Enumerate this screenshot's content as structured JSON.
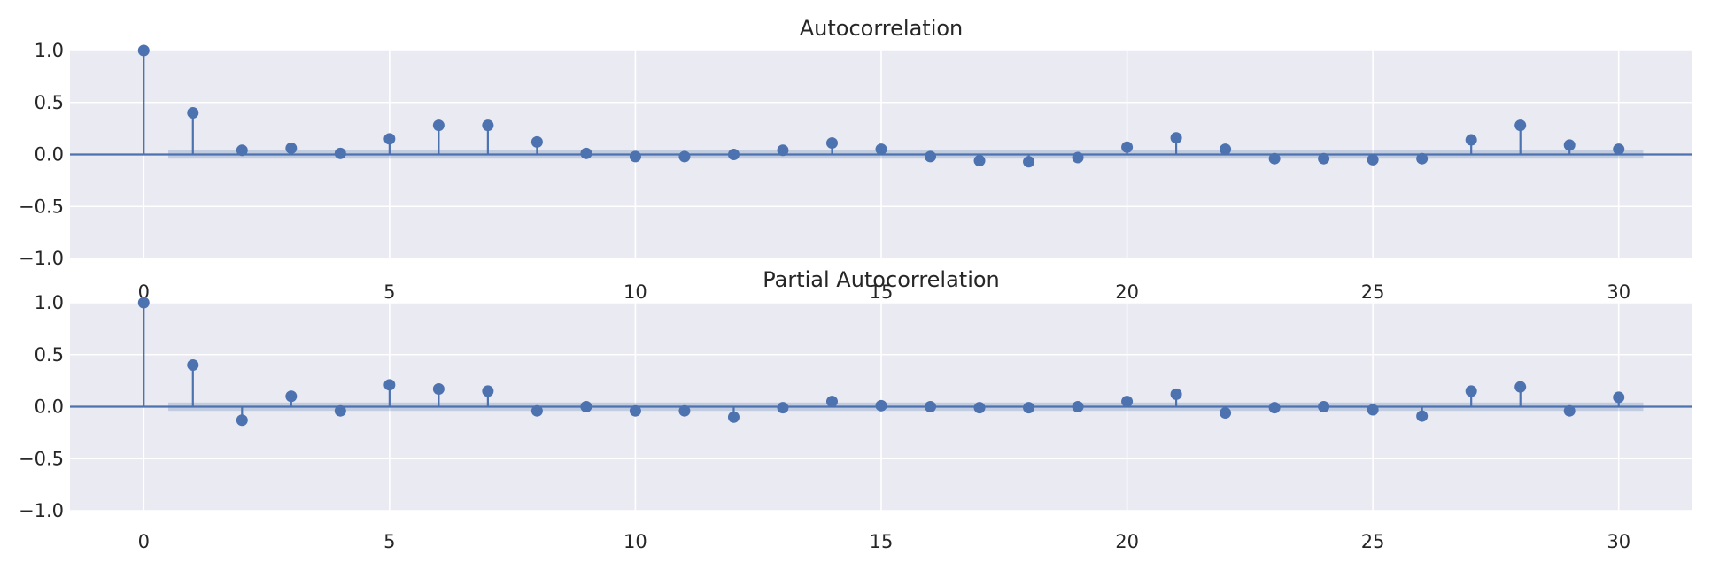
{
  "chart_data": [
    {
      "type": "stem",
      "title": "Autocorrelation",
      "xlim": [
        -1.5,
        31.5
      ],
      "ylim": [
        -1.0,
        1.0
      ],
      "xticks": [
        "0",
        "5",
        "10",
        "15",
        "20",
        "25",
        "30"
      ],
      "yticks": [
        "1.0",
        "0.5",
        "0.0",
        "−0.5",
        "−1.0"
      ],
      "grid": true,
      "lags": [
        0,
        1,
        2,
        3,
        4,
        5,
        6,
        7,
        8,
        9,
        10,
        11,
        12,
        13,
        14,
        15,
        16,
        17,
        18,
        19,
        20,
        21,
        22,
        23,
        24,
        25,
        26,
        27,
        28,
        29,
        30
      ],
      "values": [
        1.0,
        0.4,
        0.04,
        0.06,
        0.01,
        0.15,
        0.28,
        0.28,
        0.12,
        0.01,
        -0.02,
        -0.02,
        0.0,
        0.04,
        0.11,
        0.05,
        -0.02,
        -0.06,
        -0.07,
        -0.03,
        0.07,
        0.16,
        0.05,
        -0.04,
        -0.04,
        -0.05,
        -0.04,
        0.14,
        0.28,
        0.09,
        0.05
      ],
      "confidence_band": 0.04
    },
    {
      "type": "stem",
      "title": "Partial Autocorrelation",
      "xlim": [
        -1.5,
        31.5
      ],
      "ylim": [
        -1.0,
        1.0
      ],
      "xticks": [
        "0",
        "5",
        "10",
        "15",
        "20",
        "25",
        "30"
      ],
      "yticks": [
        "1.0",
        "0.5",
        "0.0",
        "−0.5",
        "−1.0"
      ],
      "grid": true,
      "lags": [
        0,
        1,
        2,
        3,
        4,
        5,
        6,
        7,
        8,
        9,
        10,
        11,
        12,
        13,
        14,
        15,
        16,
        17,
        18,
        19,
        20,
        21,
        22,
        23,
        24,
        25,
        26,
        27,
        28,
        29,
        30
      ],
      "values": [
        1.0,
        0.4,
        -0.13,
        0.1,
        -0.04,
        0.21,
        0.17,
        0.15,
        -0.04,
        0.0,
        -0.04,
        -0.04,
        -0.1,
        -0.01,
        0.05,
        0.01,
        0.0,
        -0.01,
        -0.01,
        0.0,
        0.05,
        0.12,
        -0.06,
        -0.01,
        0.0,
        -0.03,
        -0.09,
        0.15,
        0.19,
        -0.04,
        0.09
      ],
      "confidence_band": 0.04
    }
  ],
  "style": {
    "plot_bg": "#eaeaf2",
    "grid_color": "#ffffff",
    "stem_color": "#4c72b0",
    "band_color": "#4c72b0",
    "text_color": "#262626"
  }
}
